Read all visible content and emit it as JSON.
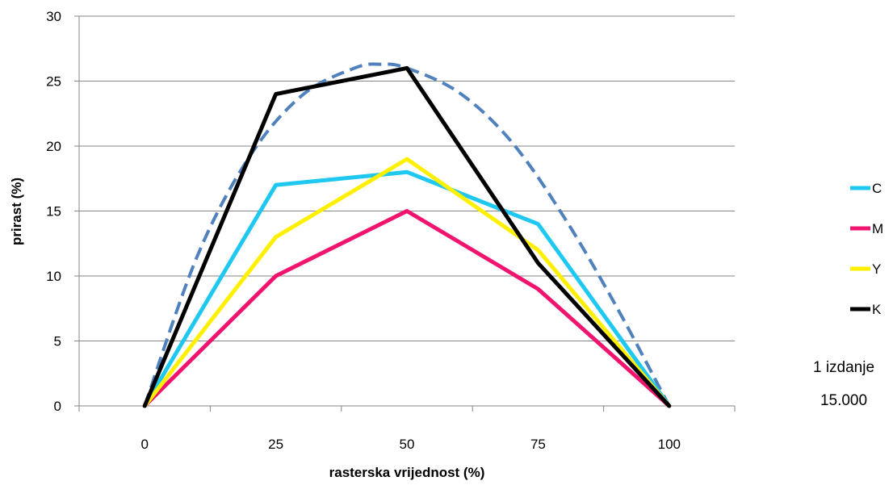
{
  "chart_data": {
    "type": "line",
    "x": [
      0,
      25,
      50,
      75,
      100
    ],
    "xlabel": "rasterska vrijednost  (%)",
    "ylabel": "prirast (%)",
    "xticks": [
      "0",
      "25",
      "50",
      "75",
      "100"
    ],
    "yticks": [
      "0",
      "5",
      "10",
      "15",
      "20",
      "25",
      "30"
    ],
    "xlim": [
      -12.5,
      112.5
    ],
    "ylim": [
      0,
      30
    ],
    "grid": "horizontal",
    "legend_position": "right",
    "series": [
      {
        "name": "C",
        "color": "#1EC8F0",
        "values": [
          0,
          17,
          18,
          14,
          0
        ]
      },
      {
        "name": "M",
        "color": "#F0146E",
        "values": [
          0,
          10,
          15,
          9,
          0
        ]
      },
      {
        "name": "Y",
        "color": "#FFF000",
        "values": [
          0,
          13,
          19,
          12,
          0
        ]
      },
      {
        "name": "K",
        "color": "#000000",
        "values": [
          0,
          24,
          26,
          11,
          0
        ]
      }
    ],
    "reference_curve": {
      "style": "dashed",
      "color": "#4F81BD",
      "points": [
        [
          0,
          0
        ],
        [
          10,
          11.5
        ],
        [
          20,
          19.2
        ],
        [
          30,
          23.9
        ],
        [
          40,
          26.0
        ],
        [
          45,
          26.3
        ],
        [
          50,
          26.0
        ],
        [
          60,
          24.1
        ],
        [
          70,
          20.3
        ],
        [
          80,
          14.5
        ],
        [
          90,
          7.6
        ],
        [
          100,
          0
        ]
      ]
    },
    "annotation": [
      "1 izdanje",
      "15.000"
    ]
  }
}
